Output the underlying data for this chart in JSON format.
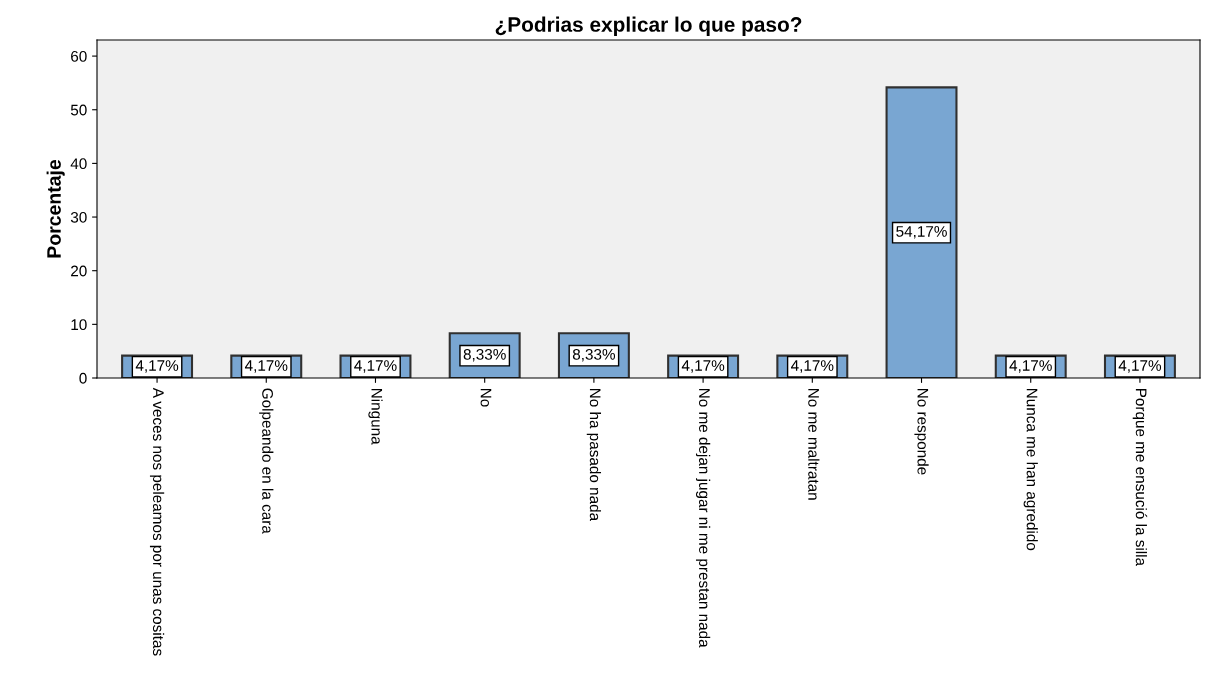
{
  "chart_data": {
    "type": "bar",
    "title": "¿Podrias explicar lo que paso?",
    "ylabel": "Porcentaje",
    "categories": [
      "A veces nos peleamos por unas cositas",
      "Golpeando en la cara",
      "Ninguna",
      "No",
      "No ha pasado nada",
      "No me dejan jugar ni me prestan nada",
      "No me maltratan",
      "No responde",
      "Nunca me han agredido",
      "Porque me ensució la silla"
    ],
    "values": [
      4.17,
      4.17,
      4.17,
      8.33,
      8.33,
      4.17,
      4.17,
      54.17,
      4.17,
      4.17
    ],
    "value_labels": [
      "4,17%",
      "4,17%",
      "4,17%",
      "8,33%",
      "8,33%",
      "4,17%",
      "4,17%",
      "54,17%",
      "4,17%",
      "4,17%"
    ],
    "color": "#79a6d2",
    "ylim": [
      0,
      63
    ],
    "yticks": [
      0,
      10,
      20,
      30,
      40,
      50,
      60
    ],
    "grid": false
  }
}
